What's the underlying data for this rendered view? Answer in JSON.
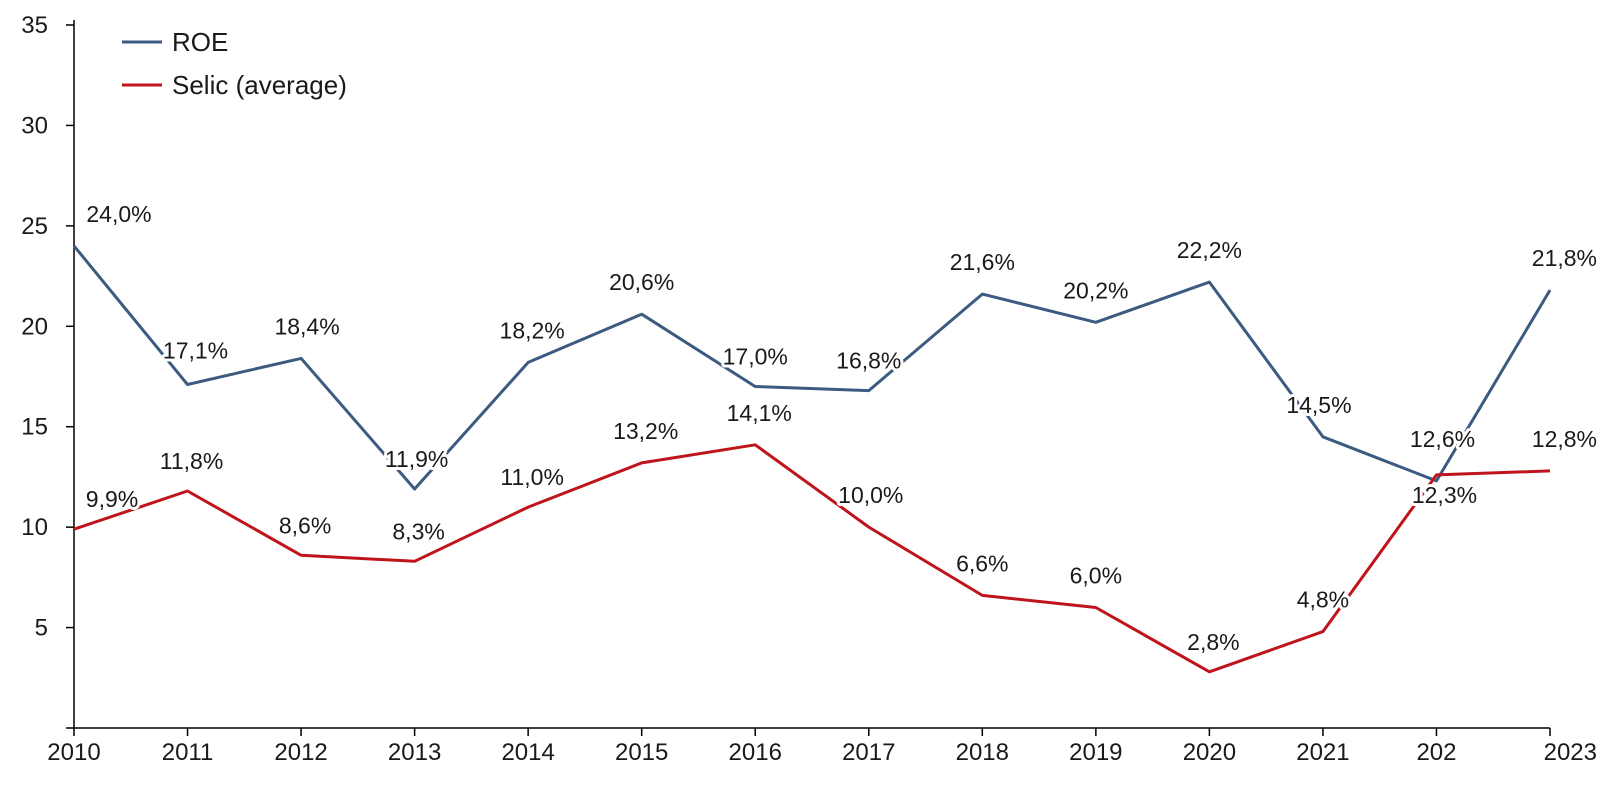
{
  "chart_data": {
    "type": "line",
    "title": "",
    "xlabel": "",
    "ylabel": "",
    "x": [
      "2010",
      "2011",
      "2012",
      "2013",
      "2014",
      "2015",
      "2016",
      "2017",
      "2018",
      "2019",
      "2020",
      "2021",
      "202",
      "2023"
    ],
    "ylim": [
      0,
      35
    ],
    "yticks": [
      "35",
      "30",
      "25",
      "20",
      "15",
      "10",
      "5"
    ],
    "grid": false,
    "legend": {
      "placement": "top-left"
    },
    "series": [
      {
        "name": "ROE",
        "color": "#3d5a80",
        "values": [
          24.0,
          17.1,
          18.4,
          11.9,
          18.2,
          20.6,
          17.0,
          16.8,
          21.6,
          20.2,
          22.2,
          14.5,
          12.3,
          21.8
        ],
        "labels": [
          "24,0%",
          "17,1%",
          "18,4%",
          "11,9%",
          "18,2%",
          "20,6%",
          "17,0%",
          "16,8%",
          "21,6%",
          "20,2%",
          "22,2%",
          "14,5%",
          "12,3%",
          "21,8%"
        ]
      },
      {
        "name": "Selic (average)",
        "color": "#c0141c",
        "values": [
          9.9,
          11.8,
          8.6,
          8.3,
          11.0,
          13.2,
          14.1,
          10.0,
          6.6,
          6.0,
          2.8,
          4.8,
          12.6,
          12.8
        ],
        "labels": [
          "9,9%",
          "11,8%",
          "8,6%",
          "8,3%",
          "11,0%",
          "13,2%",
          "14,1%",
          "10,0%",
          "6,6%",
          "6,0%",
          "2,8%",
          "4,8%",
          "12,6%",
          "12,8%"
        ]
      }
    ]
  }
}
